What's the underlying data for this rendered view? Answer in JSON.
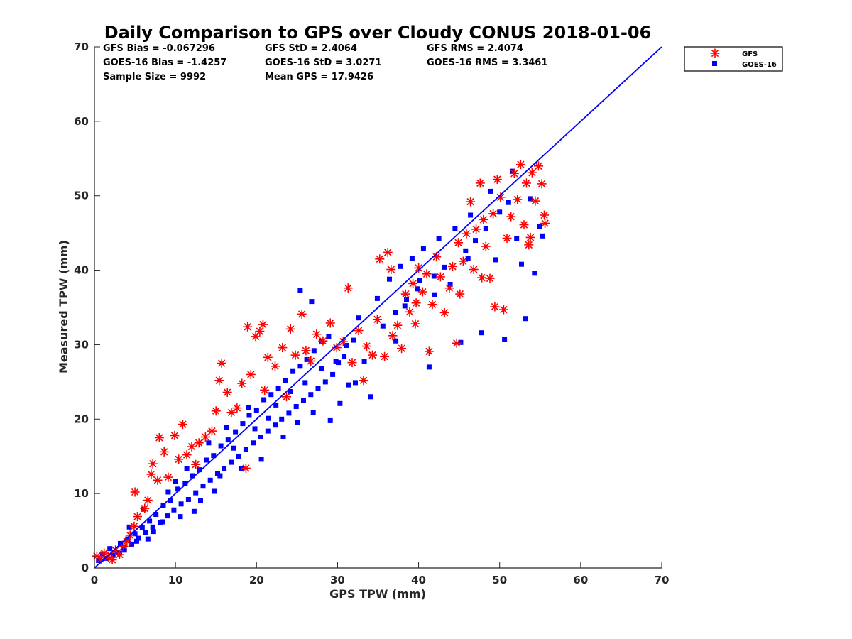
{
  "chart_data": {
    "type": "scatter",
    "title": "Daily Comparison to GPS over Cloudy CONUS 2018-01-06",
    "xlabel": "GPS TPW (mm)",
    "ylabel": "Measured TPW (mm)",
    "xlim": [
      0,
      70
    ],
    "ylim": [
      0,
      70
    ],
    "xticks": [
      "0",
      "10",
      "20",
      "30",
      "40",
      "50",
      "60",
      "70"
    ],
    "yticks": [
      "0",
      "10",
      "20",
      "30",
      "40",
      "50",
      "60",
      "70"
    ],
    "grid": false,
    "legend_position": "outside-top-right",
    "stats": [
      [
        "GFS Bias = -0.067296",
        "GFS StD = 2.4064",
        "GFS RMS = 2.4074"
      ],
      [
        "GOES-16 Bias = -1.4257",
        "GOES-16 StD = 3.0271",
        "GOES-16 RMS = 3.3461"
      ],
      [
        "Sample Size = 9992",
        "Mean GPS = 17.9426",
        ""
      ]
    ],
    "reference_line": {
      "x": [
        0,
        70
      ],
      "y": [
        0,
        70
      ],
      "color": "#0000ff"
    },
    "series": [
      {
        "name": "GFS",
        "marker": "asterisk",
        "color": "#ff0000",
        "points": [
          [
            0.3,
            1.6
          ],
          [
            0.8,
            1.2
          ],
          [
            1.2,
            2.0
          ],
          [
            1.7,
            1.5
          ],
          [
            2.2,
            1.1
          ],
          [
            2.6,
            2.4
          ],
          [
            3.1,
            1.8
          ],
          [
            3.6,
            2.9
          ],
          [
            4.0,
            3.6
          ],
          [
            4.4,
            4.4
          ],
          [
            4.9,
            5.6
          ],
          [
            5.3,
            6.9
          ],
          [
            5.0,
            10.2
          ],
          [
            6.2,
            8.0
          ],
          [
            6.6,
            9.1
          ],
          [
            7.0,
            12.6
          ],
          [
            7.2,
            14.0
          ],
          [
            7.8,
            11.8
          ],
          [
            8.0,
            17.5
          ],
          [
            8.6,
            15.6
          ],
          [
            9.1,
            12.2
          ],
          [
            9.9,
            17.8
          ],
          [
            10.4,
            14.6
          ],
          [
            10.9,
            19.3
          ],
          [
            11.4,
            15.2
          ],
          [
            12.0,
            16.3
          ],
          [
            12.5,
            13.9
          ],
          [
            12.9,
            16.8
          ],
          [
            13.7,
            17.6
          ],
          [
            14.5,
            18.4
          ],
          [
            15.0,
            21.1
          ],
          [
            15.4,
            25.2
          ],
          [
            15.7,
            27.5
          ],
          [
            16.4,
            23.6
          ],
          [
            16.9,
            20.9
          ],
          [
            17.6,
            21.5
          ],
          [
            18.2,
            24.8
          ],
          [
            18.7,
            13.4
          ],
          [
            18.9,
            32.4
          ],
          [
            19.3,
            26.0
          ],
          [
            19.9,
            31.1
          ],
          [
            20.4,
            31.8
          ],
          [
            20.8,
            32.7
          ],
          [
            21.0,
            23.9
          ],
          [
            21.4,
            28.3
          ],
          [
            22.3,
            27.1
          ],
          [
            23.2,
            29.6
          ],
          [
            23.7,
            23.0
          ],
          [
            24.2,
            32.1
          ],
          [
            24.8,
            28.6
          ],
          [
            25.6,
            34.1
          ],
          [
            26.1,
            29.2
          ],
          [
            26.7,
            27.8
          ],
          [
            27.4,
            31.4
          ],
          [
            28.2,
            30.5
          ],
          [
            29.1,
            32.9
          ],
          [
            29.9,
            29.6
          ],
          [
            30.7,
            30.4
          ],
          [
            31.3,
            37.6
          ],
          [
            31.8,
            27.6
          ],
          [
            32.6,
            31.9
          ],
          [
            33.2,
            25.2
          ],
          [
            33.6,
            29.8
          ],
          [
            34.3,
            28.6
          ],
          [
            34.9,
            33.4
          ],
          [
            35.2,
            41.5
          ],
          [
            35.8,
            28.4
          ],
          [
            36.2,
            42.4
          ],
          [
            36.8,
            31.2
          ],
          [
            37.4,
            32.6
          ],
          [
            37.9,
            29.5
          ],
          [
            38.4,
            36.8
          ],
          [
            38.9,
            34.4
          ],
          [
            39.3,
            38.2
          ],
          [
            39.7,
            35.6
          ],
          [
            40.0,
            40.3
          ],
          [
            40.5,
            37.1
          ],
          [
            41.0,
            39.5
          ],
          [
            41.3,
            29.1
          ],
          [
            41.7,
            35.4
          ],
          [
            42.2,
            41.8
          ],
          [
            42.7,
            39.1
          ],
          [
            43.2,
            34.3
          ],
          [
            43.8,
            37.6
          ],
          [
            44.2,
            40.5
          ],
          [
            44.7,
            30.2
          ],
          [
            45.1,
            36.8
          ],
          [
            45.5,
            41.2
          ],
          [
            45.9,
            44.9
          ],
          [
            46.4,
            49.2
          ],
          [
            46.8,
            40.1
          ],
          [
            47.1,
            45.5
          ],
          [
            47.6,
            51.7
          ],
          [
            48.0,
            46.8
          ],
          [
            48.3,
            43.2
          ],
          [
            48.8,
            38.9
          ],
          [
            49.2,
            47.6
          ],
          [
            49.7,
            52.2
          ],
          [
            50.1,
            49.8
          ],
          [
            50.5,
            34.7
          ],
          [
            50.9,
            44.3
          ],
          [
            51.4,
            47.2
          ],
          [
            51.8,
            53.0
          ],
          [
            52.2,
            49.5
          ],
          [
            52.6,
            54.2
          ],
          [
            53.0,
            46.1
          ],
          [
            53.3,
            51.7
          ],
          [
            53.6,
            43.4
          ],
          [
            54.0,
            53.1
          ],
          [
            54.4,
            49.3
          ],
          [
            54.8,
            54.0
          ],
          [
            55.2,
            51.6
          ],
          [
            55.5,
            47.4
          ],
          [
            55.6,
            46.3
          ],
          [
            53.8,
            44.4
          ],
          [
            49.4,
            35.1
          ],
          [
            47.8,
            39.0
          ],
          [
            44.9,
            43.7
          ],
          [
            39.6,
            32.8
          ],
          [
            36.6,
            40.1
          ]
        ]
      },
      {
        "name": "GOES-16",
        "marker": "square",
        "color": "#0000ff",
        "points": [
          [
            0.5,
            1.0
          ],
          [
            1.0,
            1.9
          ],
          [
            1.4,
            1.3
          ],
          [
            1.9,
            2.6
          ],
          [
            2.3,
            1.7
          ],
          [
            2.8,
            2.1
          ],
          [
            3.2,
            3.3
          ],
          [
            3.7,
            2.4
          ],
          [
            4.1,
            3.9
          ],
          [
            4.6,
            3.2
          ],
          [
            5.0,
            4.6
          ],
          [
            5.4,
            4.0
          ],
          [
            5.9,
            5.4
          ],
          [
            6.3,
            4.8
          ],
          [
            6.8,
            6.3
          ],
          [
            7.2,
            5.5
          ],
          [
            7.6,
            7.2
          ],
          [
            8.1,
            6.1
          ],
          [
            8.5,
            8.4
          ],
          [
            9.0,
            7.0
          ],
          [
            9.4,
            9.1
          ],
          [
            9.8,
            7.8
          ],
          [
            10.3,
            10.6
          ],
          [
            10.7,
            8.6
          ],
          [
            11.2,
            11.3
          ],
          [
            11.6,
            9.2
          ],
          [
            12.1,
            12.4
          ],
          [
            12.5,
            10.1
          ],
          [
            13.0,
            13.2
          ],
          [
            13.4,
            11.0
          ],
          [
            13.8,
            14.5
          ],
          [
            14.3,
            11.8
          ],
          [
            14.7,
            15.1
          ],
          [
            15.2,
            12.7
          ],
          [
            15.6,
            16.4
          ],
          [
            16.0,
            13.3
          ],
          [
            16.5,
            17.2
          ],
          [
            16.9,
            14.2
          ],
          [
            17.4,
            18.3
          ],
          [
            17.8,
            15.0
          ],
          [
            18.3,
            19.4
          ],
          [
            18.7,
            15.9
          ],
          [
            19.1,
            20.5
          ],
          [
            19.6,
            16.8
          ],
          [
            20.0,
            21.2
          ],
          [
            20.5,
            17.6
          ],
          [
            20.9,
            22.6
          ],
          [
            21.4,
            18.4
          ],
          [
            21.8,
            23.3
          ],
          [
            22.3,
            19.2
          ],
          [
            22.7,
            24.1
          ],
          [
            23.1,
            20.0
          ],
          [
            23.6,
            25.2
          ],
          [
            24.0,
            20.8
          ],
          [
            24.5,
            26.4
          ],
          [
            24.9,
            21.7
          ],
          [
            25.4,
            27.1
          ],
          [
            25.8,
            22.5
          ],
          [
            26.2,
            28.0
          ],
          [
            26.7,
            23.3
          ],
          [
            27.1,
            29.2
          ],
          [
            27.6,
            24.1
          ],
          [
            28.0,
            30.4
          ],
          [
            28.5,
            25.0
          ],
          [
            28.9,
            31.1
          ],
          [
            29.4,
            26.0
          ],
          [
            29.8,
            27.7
          ],
          [
            30.3,
            22.1
          ],
          [
            30.8,
            28.4
          ],
          [
            31.4,
            24.6
          ],
          [
            32.0,
            30.6
          ],
          [
            32.6,
            33.6
          ],
          [
            33.3,
            27.8
          ],
          [
            34.1,
            23.0
          ],
          [
            34.9,
            36.2
          ],
          [
            35.6,
            32.5
          ],
          [
            36.4,
            38.8
          ],
          [
            37.1,
            34.3
          ],
          [
            37.8,
            40.5
          ],
          [
            38.5,
            36.1
          ],
          [
            39.2,
            41.6
          ],
          [
            39.9,
            37.5
          ],
          [
            40.6,
            42.9
          ],
          [
            41.3,
            27.0
          ],
          [
            41.9,
            39.2
          ],
          [
            42.5,
            44.3
          ],
          [
            43.2,
            40.4
          ],
          [
            43.9,
            38.1
          ],
          [
            44.5,
            45.6
          ],
          [
            45.2,
            30.3
          ],
          [
            45.8,
            42.6
          ],
          [
            46.4,
            47.4
          ],
          [
            47.0,
            44.0
          ],
          [
            47.7,
            31.6
          ],
          [
            48.3,
            45.6
          ],
          [
            48.9,
            50.6
          ],
          [
            49.5,
            41.4
          ],
          [
            50.0,
            47.8
          ],
          [
            50.6,
            30.7
          ],
          [
            51.1,
            49.1
          ],
          [
            51.6,
            53.3
          ],
          [
            52.1,
            44.3
          ],
          [
            52.7,
            40.8
          ],
          [
            53.2,
            33.5
          ],
          [
            53.8,
            49.6
          ],
          [
            54.3,
            39.6
          ],
          [
            54.9,
            45.9
          ],
          [
            55.3,
            44.6
          ],
          [
            25.4,
            37.3
          ],
          [
            26.8,
            35.8
          ],
          [
            3.1,
            2.0
          ],
          [
            3.6,
            2.8
          ],
          [
            4.3,
            5.5
          ],
          [
            5.2,
            3.6
          ],
          [
            6.1,
            7.9
          ],
          [
            6.6,
            3.9
          ],
          [
            7.3,
            4.9
          ],
          [
            8.4,
            6.2
          ],
          [
            9.1,
            10.2
          ],
          [
            10.0,
            11.6
          ],
          [
            10.6,
            6.9
          ],
          [
            11.4,
            13.4
          ],
          [
            12.3,
            7.6
          ],
          [
            13.1,
            9.1
          ],
          [
            14.1,
            16.8
          ],
          [
            14.8,
            10.3
          ],
          [
            15.5,
            12.4
          ],
          [
            16.3,
            18.9
          ],
          [
            17.2,
            16.1
          ],
          [
            18.1,
            13.4
          ],
          [
            19.0,
            21.6
          ],
          [
            19.8,
            18.7
          ],
          [
            20.6,
            14.6
          ],
          [
            21.5,
            20.1
          ],
          [
            22.4,
            21.9
          ],
          [
            23.3,
            17.6
          ],
          [
            24.2,
            23.7
          ],
          [
            25.1,
            19.6
          ],
          [
            26.0,
            24.9
          ],
          [
            27.0,
            20.9
          ],
          [
            28.0,
            26.8
          ],
          [
            29.1,
            19.8
          ],
          [
            30.1,
            27.6
          ],
          [
            31.1,
            29.9
          ],
          [
            32.2,
            24.9
          ],
          [
            37.2,
            30.5
          ],
          [
            38.3,
            35.2
          ],
          [
            40.1,
            38.6
          ],
          [
            42.0,
            36.7
          ],
          [
            46.1,
            41.6
          ]
        ]
      }
    ]
  }
}
